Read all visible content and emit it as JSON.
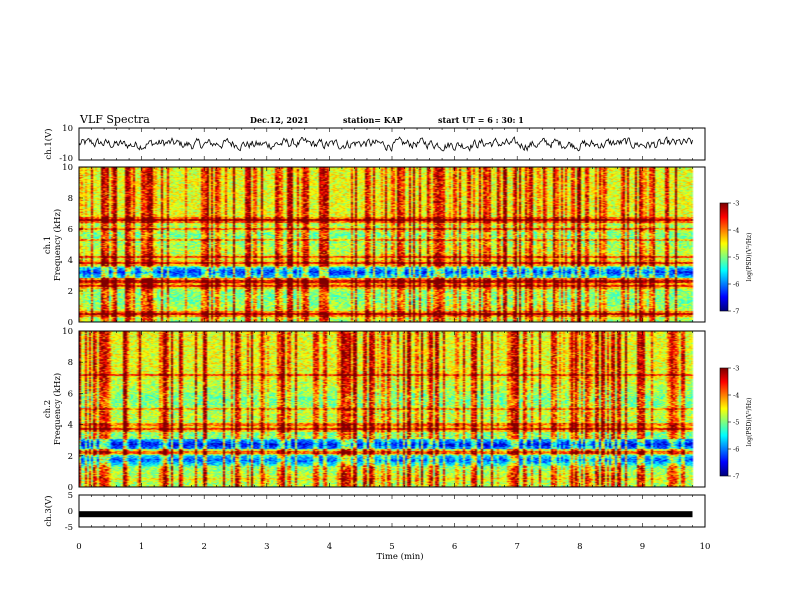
{
  "header": {
    "title": "VLF Spectra",
    "date": "Dec.12, 2021",
    "station": "station= KAP",
    "start": "start  UT =  6 : 30: 1"
  },
  "chart_data": [
    {
      "type": "line",
      "name": "ch1-waveform",
      "ylabel": "ch.1(V)",
      "ylim": [
        -10,
        10
      ],
      "yticks": [
        "10",
        "-10"
      ],
      "xlim": [
        0,
        10
      ],
      "description_values": "noisy waveform oscillating roughly between -4 and +4 V over 0-9.8 min"
    },
    {
      "type": "heatmap",
      "name": "ch1-spectrogram",
      "ylabel_line1": "ch.1",
      "ylabel_line2": "Frequency  (kHz)",
      "ylim": [
        0,
        10
      ],
      "yticks": [
        "0",
        "2",
        "4",
        "6",
        "8",
        "10"
      ],
      "xlim": [
        0,
        10
      ],
      "data_end_min": 9.8,
      "colorbar": {
        "label": "log(PSD)(V²/Hz)",
        "range": [
          -7,
          -3
        ],
        "ticks": [
          "-3",
          "-4",
          "-5",
          "-6",
          "-7"
        ]
      },
      "bands": [
        {
          "f": 6.6,
          "level": -3.2
        },
        {
          "f": 6.0,
          "level": -4.0
        },
        {
          "f": 5.3,
          "level": -4.2
        },
        {
          "f": 4.2,
          "level": -3.8
        },
        {
          "f": 3.8,
          "level": -3.6
        },
        {
          "f": 3.2,
          "level": -6.4
        },
        {
          "f": 2.6,
          "level": -3.4
        },
        {
          "f": 2.3,
          "level": -3.6
        },
        {
          "f": 0.5,
          "level": -3.3
        }
      ]
    },
    {
      "type": "heatmap",
      "name": "ch2-spectrogram",
      "ylabel_line1": "ch.2",
      "ylabel_line2": "Frequency  (kHz)",
      "ylim": [
        0,
        10
      ],
      "yticks": [
        "0",
        "2",
        "4",
        "6",
        "8",
        "10"
      ],
      "xlim": [
        0,
        10
      ],
      "data_end_min": 9.8,
      "colorbar": {
        "label": "log(PSD)(V²/Hz)",
        "range": [
          -7,
          -3
        ],
        "ticks": [
          "-3",
          "-4",
          "-5",
          "-6",
          "-7"
        ]
      },
      "bands": [
        {
          "f": 7.2,
          "level": -3.8
        },
        {
          "f": 5.0,
          "level": -4.2
        },
        {
          "f": 4.0,
          "level": -4.0
        },
        {
          "f": 3.7,
          "level": -3.6
        },
        {
          "f": 2.7,
          "level": -6.6
        },
        {
          "f": 2.2,
          "level": -4.0
        },
        {
          "f": 1.7,
          "level": -6.2
        },
        {
          "f": 0.5,
          "level": -4.5
        }
      ]
    },
    {
      "type": "line",
      "name": "ch3-waveform",
      "ylabel": "ch.3(V)",
      "ylim": [
        -5,
        5
      ],
      "yticks": [
        "5",
        "0",
        "-5"
      ],
      "xlim": [
        0,
        10
      ],
      "xlabel": "Time  (min)",
      "xticks": [
        "0",
        "1",
        "2",
        "3",
        "4",
        "5",
        "6",
        "7",
        "8",
        "9",
        "10"
      ],
      "values_note": "constant line near -1 V",
      "level": -1
    }
  ]
}
